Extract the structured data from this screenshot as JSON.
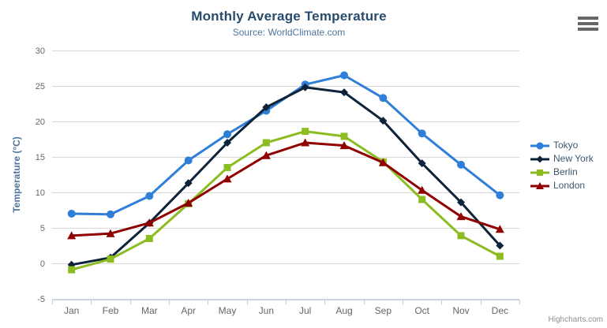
{
  "header": {
    "title": "Monthly Average Temperature",
    "subtitle": "Source: WorldClimate.com"
  },
  "credits": "Highcharts.com",
  "icons": {
    "context_menu": "hamburger-icon"
  },
  "colors": {
    "title": "#274b6d",
    "subtitle": "#4d759e",
    "grid": "#d8d8d8",
    "axis_line": "#c0d0e0",
    "tick_label": "#666666",
    "axis_title": "#4d759e",
    "legend_text": "#3e576f",
    "credits_text": "#909090",
    "burger": "#666666",
    "background": "#ffffff"
  },
  "chart_data": {
    "type": "line",
    "title": "Monthly Average Temperature",
    "subtitle": "Source: WorldClimate.com",
    "categories": [
      "Jan",
      "Feb",
      "Mar",
      "Apr",
      "May",
      "Jun",
      "Jul",
      "Aug",
      "Sep",
      "Oct",
      "Nov",
      "Dec"
    ],
    "series": [
      {
        "name": "Tokyo",
        "color": "#2f7ed8",
        "marker": "circle",
        "values": [
          7.0,
          6.9,
          9.5,
          14.5,
          18.2,
          21.5,
          25.2,
          26.5,
          23.3,
          18.3,
          13.9,
          9.6
        ]
      },
      {
        "name": "New York",
        "color": "#0d233a",
        "marker": "diamond",
        "values": [
          -0.2,
          0.8,
          5.7,
          11.3,
          17.0,
          22.0,
          24.8,
          24.1,
          20.1,
          14.1,
          8.6,
          2.5
        ]
      },
      {
        "name": "Berlin",
        "color": "#8bbc21",
        "marker": "square",
        "values": [
          -0.9,
          0.6,
          3.5,
          8.4,
          13.5,
          17.0,
          18.6,
          17.9,
          14.3,
          9.0,
          3.9,
          1.0
        ]
      },
      {
        "name": "London",
        "color": "#910000",
        "marker": "triangle",
        "values": [
          3.9,
          4.2,
          5.7,
          8.5,
          11.9,
          15.2,
          17.0,
          16.6,
          14.2,
          10.3,
          6.6,
          4.8
        ]
      }
    ],
    "xlabel": "",
    "ylabel": "Temperature (°C)",
    "ylim": [
      -5,
      30
    ],
    "yticks": [
      30,
      25,
      20,
      15,
      10,
      5,
      0,
      -5
    ],
    "grid": true,
    "legend_position": "right"
  }
}
